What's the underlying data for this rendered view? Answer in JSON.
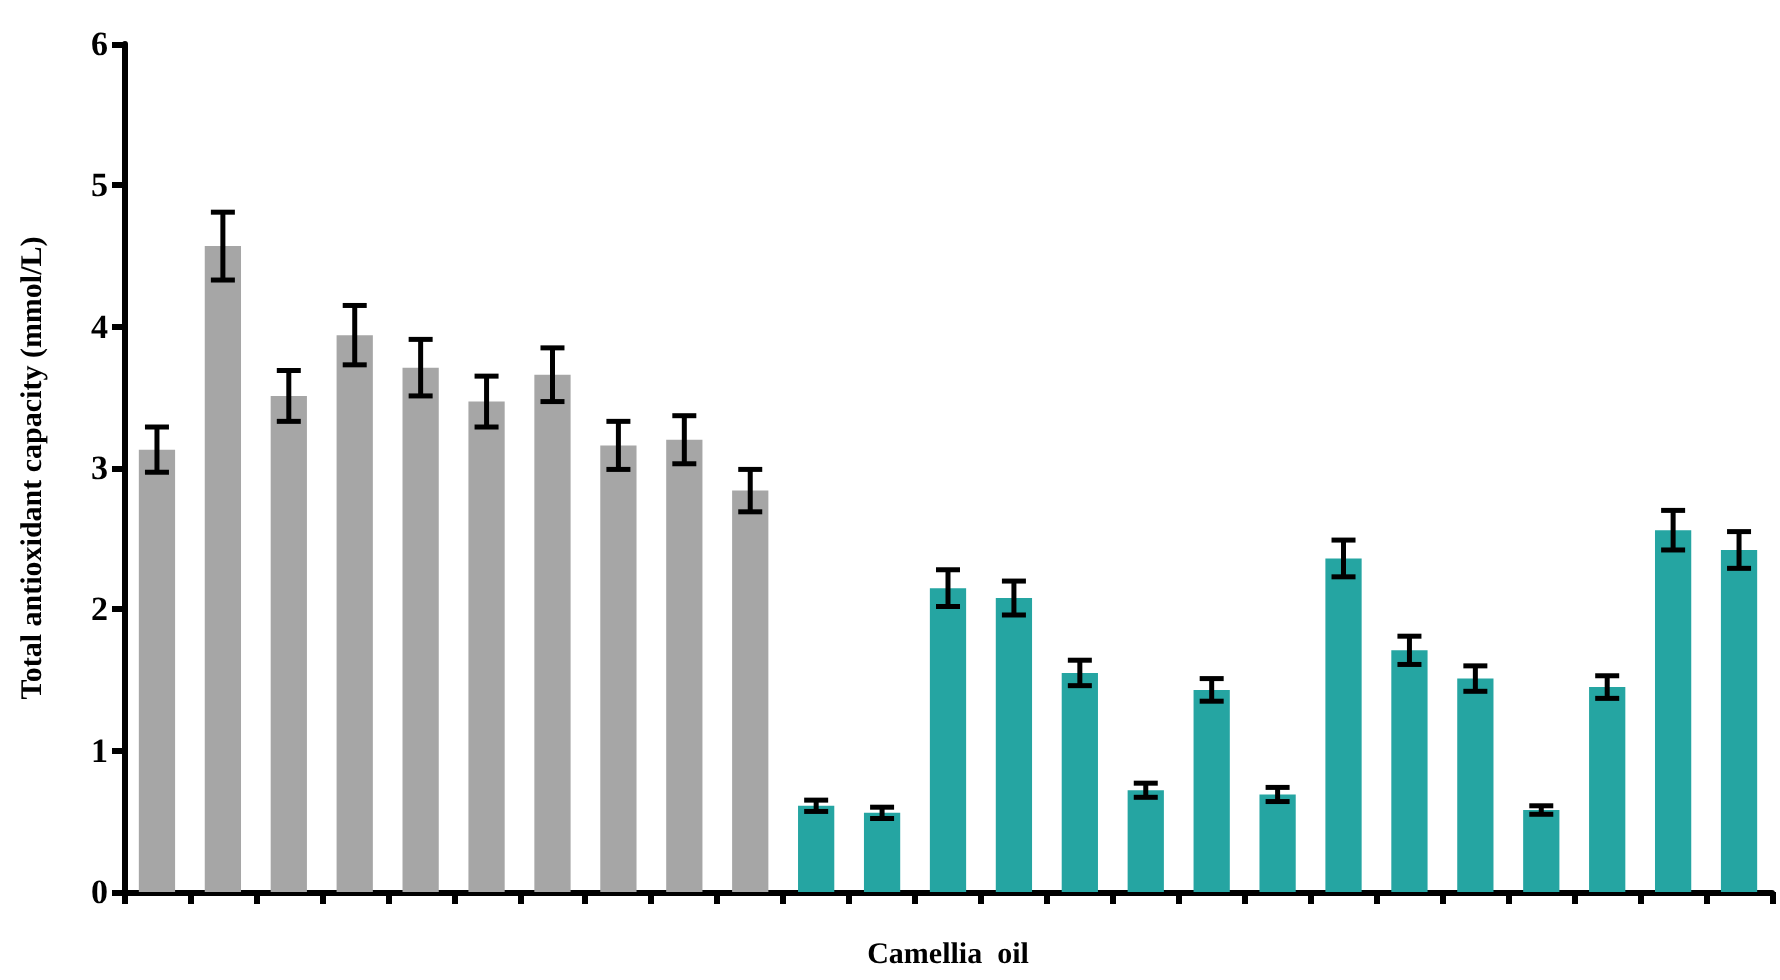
{
  "chart_data": {
    "type": "bar",
    "xlabel": "Camellia  oil",
    "ylabel": "Total antioxidant capacity (mmol/L)",
    "categories": [
      null,
      null,
      null,
      null,
      null,
      null,
      null,
      null,
      null,
      null,
      null,
      null,
      null,
      null,
      null,
      null,
      null,
      null,
      null,
      null,
      null,
      null,
      null,
      null,
      null
    ],
    "values": [
      3.13,
      4.57,
      3.51,
      3.94,
      3.71,
      3.47,
      3.66,
      3.16,
      3.2,
      2.84,
      0.61,
      0.56,
      2.15,
      2.08,
      1.55,
      0.72,
      1.43,
      0.69,
      2.36,
      1.71,
      1.51,
      0.58,
      1.45,
      2.56,
      2.42
    ],
    "errors": [
      0.16,
      0.24,
      0.18,
      0.21,
      0.2,
      0.18,
      0.19,
      0.17,
      0.17,
      0.15,
      0.04,
      0.04,
      0.13,
      0.12,
      0.09,
      0.05,
      0.08,
      0.05,
      0.13,
      0.1,
      0.09,
      0.03,
      0.08,
      0.14,
      0.13
    ],
    "colors": [
      "#a6a6a6",
      "#a6a6a6",
      "#a6a6a6",
      "#a6a6a6",
      "#a6a6a6",
      "#a6a6a6",
      "#a6a6a6",
      "#a6a6a6",
      "#a6a6a6",
      "#a6a6a6",
      "#25a5a2",
      "#25a5a2",
      "#25a5a2",
      "#25a5a2",
      "#25a5a2",
      "#25a5a2",
      "#25a5a2",
      "#25a5a2",
      "#25a5a2",
      "#25a5a2",
      "#25a5a2",
      "#25a5a2",
      "#25a5a2",
      "#25a5a2",
      "#25a5a2"
    ],
    "ylim": [
      0,
      6
    ],
    "yticks": [
      0,
      1,
      2,
      3,
      4,
      5,
      6
    ]
  }
}
